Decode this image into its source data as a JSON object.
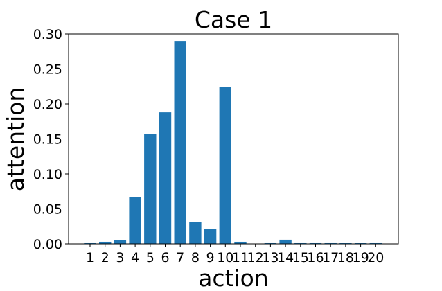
{
  "chart_data": {
    "type": "bar",
    "title": "Case 1",
    "xlabel": "action",
    "ylabel": "attention",
    "categories": [
      "1",
      "2",
      "3",
      "4",
      "5",
      "6",
      "7",
      "8",
      "9",
      "10",
      "11",
      "12",
      "13",
      "14",
      "15",
      "16",
      "17",
      "18",
      "19",
      "20"
    ],
    "values": [
      0.002,
      0.003,
      0.005,
      0.067,
      0.157,
      0.188,
      0.29,
      0.031,
      0.021,
      0.224,
      0.003,
      0.0005,
      0.002,
      0.006,
      0.002,
      0.002,
      0.002,
      0.001,
      0.001,
      0.002
    ],
    "ylim": [
      0,
      0.3
    ],
    "yticks": [
      "0.00",
      "0.05",
      "0.10",
      "0.15",
      "0.20",
      "0.25",
      "0.30"
    ],
    "grid": false,
    "bar_color": "#1f77b4"
  }
}
